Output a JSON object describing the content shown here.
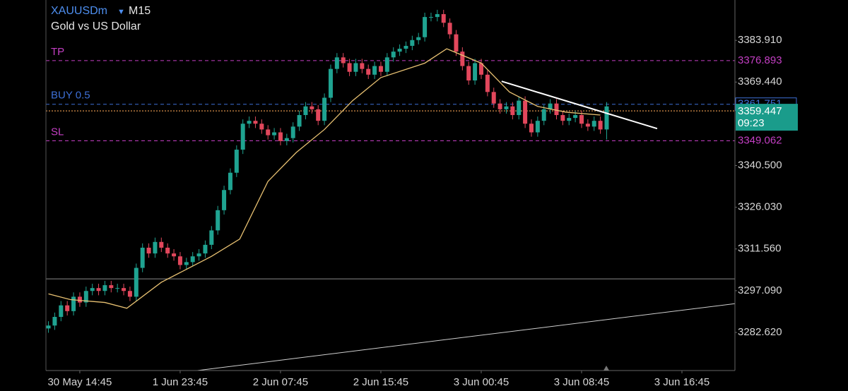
{
  "chart_data": {
    "type": "candlestick",
    "title": "XAUUSDm",
    "timeframe": "M15",
    "subtitle": "Gold vs US Dollar",
    "colors": {
      "up": "#1fa391",
      "down": "#e2475c"
    },
    "xlim": [
      -10.8,
      208.9
    ],
    "ylim": [
      3269.4,
      3397.9
    ],
    "xticks": [
      {
        "value": 0,
        "label": "30 May 14:45"
      },
      {
        "value": 32,
        "label": "1 Jun 23:45"
      },
      {
        "value": 64,
        "label": "2 Jun 07:45"
      },
      {
        "value": 96,
        "label": "2 Jun 15:45"
      },
      {
        "value": 128,
        "label": "3 Jun 00:45"
      },
      {
        "value": 160,
        "label": "3 Jun 08:45"
      },
      {
        "value": 192,
        "label": "3 Jun 16:45"
      }
    ],
    "yticks": [
      {
        "value": 3383.91,
        "label": "3383.910"
      },
      {
        "value": 3369.44,
        "label": "3369.440"
      },
      {
        "value": 3340.5,
        "label": "3340.500"
      },
      {
        "value": 3326.03,
        "label": "3326.030"
      },
      {
        "value": 3311.56,
        "label": "3311.560"
      },
      {
        "value": 3297.09,
        "label": "3297.090"
      },
      {
        "value": 3282.62,
        "label": "3282.620"
      }
    ],
    "x": [
      -10,
      -8,
      -6,
      -4,
      -2,
      0,
      2,
      4,
      6,
      8,
      10,
      12,
      14,
      16,
      18,
      20,
      22,
      24,
      26,
      28,
      30,
      32,
      34,
      36,
      38,
      40,
      42,
      44,
      46,
      48,
      50,
      52,
      54,
      56,
      58,
      60,
      62,
      64,
      66,
      68,
      70,
      72,
      74,
      76,
      78,
      80,
      82,
      84,
      86,
      88,
      90,
      92,
      94,
      96,
      98,
      100,
      102,
      104,
      106,
      108,
      110,
      112,
      114,
      116,
      118,
      120,
      122,
      124,
      126,
      128,
      130,
      132,
      134,
      136,
      138,
      140,
      142,
      144,
      146,
      148,
      150,
      152,
      154,
      156,
      158,
      160,
      162,
      164,
      166,
      168
    ],
    "open": [
      3284,
      3285,
      3288,
      3292,
      3290,
      3295,
      3293,
      3297,
      3298,
      3297,
      3299,
      3298,
      3298,
      3297,
      3295,
      3305,
      3312,
      3310,
      3314,
      3312,
      3310,
      3309,
      3306,
      3307,
      3309,
      3310,
      3313,
      3318,
      3325,
      3332,
      3338,
      3346,
      3355,
      3356,
      3355,
      3353,
      3351,
      3352,
      3349,
      3350,
      3354,
      3358,
      3361,
      3360,
      3356,
      3364,
      3374,
      3378,
      3376,
      3373,
      3376,
      3374,
      3372,
      3375,
      3373,
      3378,
      3380,
      3381,
      3382,
      3384,
      3385,
      3392,
      3392,
      3393,
      3390,
      3386,
      3380,
      3375,
      3370,
      3376,
      3372,
      3366,
      3362,
      3360,
      3361,
      3358,
      3363,
      3355,
      3352,
      3356,
      3360,
      3362,
      3358,
      3356,
      3357,
      3358,
      3355,
      3354,
      3356,
      3353
    ],
    "high": [
      3286.5,
      3289.5,
      3293.5,
      3293.5,
      3296.5,
      3296.5,
      3298.5,
      3299.5,
      3299.5,
      3300.5,
      3300.5,
      3299.5,
      3299.5,
      3298.5,
      3306.5,
      3313.5,
      3313.5,
      3315.5,
      3315.5,
      3313.5,
      3311.5,
      3310.5,
      3308.5,
      3310.5,
      3311.5,
      3314.5,
      3319.5,
      3326.5,
      3333.5,
      3339.5,
      3347.5,
      3356.5,
      3357.5,
      3357.5,
      3356.5,
      3354.5,
      3353.5,
      3353.5,
      3351.5,
      3355.5,
      3359.5,
      3362.5,
      3362.5,
      3361.5,
      3365.5,
      3375.5,
      3379.5,
      3379.5,
      3377.5,
      3377.5,
      3377.5,
      3375.5,
      3376.5,
      3376.5,
      3379.5,
      3381.5,
      3382.5,
      3383.5,
      3385.5,
      3386.5,
      3393.5,
      3393.5,
      3394.5,
      3394.5,
      3391.5,
      3387.5,
      3381.5,
      3376.5,
      3377.5,
      3377.5,
      3373.5,
      3367.5,
      3363.5,
      3362.5,
      3362.5,
      3364.5,
      3364.5,
      3356.5,
      3357.5,
      3361.5,
      3363.5,
      3363.5,
      3359.5,
      3358.5,
      3359.5,
      3359.5,
      3356.5,
      3357.5,
      3357.5,
      3362.5
    ],
    "low": [
      3282.5,
      3283.5,
      3286.5,
      3288.5,
      3288.5,
      3291.5,
      3291.5,
      3295.5,
      3295.5,
      3295.5,
      3296.5,
      3296.5,
      3295.5,
      3293.5,
      3293.5,
      3303.5,
      3308.5,
      3308.5,
      3310.5,
      3308.5,
      3307.5,
      3304.5,
      3304.5,
      3305.5,
      3307.5,
      3308.5,
      3311.5,
      3316.5,
      3323.5,
      3330.5,
      3336.5,
      3344.5,
      3353.5,
      3353.5,
      3351.5,
      3349.5,
      3349.5,
      3347.5,
      3347.5,
      3348.5,
      3352.5,
      3356.5,
      3358.5,
      3354.5,
      3354.5,
      3362.5,
      3372.5,
      3374.5,
      3371.5,
      3371.5,
      3372.5,
      3370.5,
      3370.5,
      3371.5,
      3371.5,
      3376.5,
      3378.5,
      3379.5,
      3380.5,
      3382.5,
      3383.5,
      3390.5,
      3390.5,
      3388.5,
      3384.5,
      3378.5,
      3373.5,
      3368.5,
      3368.5,
      3370.5,
      3364.5,
      3360.5,
      3358.5,
      3358.5,
      3356.5,
      3356.5,
      3353.5,
      3350.5,
      3350.5,
      3354.5,
      3358.5,
      3356.5,
      3354.5,
      3354.5,
      3355.5,
      3353.5,
      3352.5,
      3352.5,
      3351.5,
      3349.5
    ],
    "close": [
      3285,
      3288,
      3292,
      3290,
      3295,
      3293,
      3297,
      3298,
      3297,
      3299,
      3298,
      3298,
      3297,
      3295,
      3305,
      3312,
      3310,
      3314,
      3312,
      3310,
      3309,
      3306,
      3307,
      3309,
      3310,
      3313,
      3318,
      3325,
      3332,
      3338,
      3346,
      3355,
      3356,
      3355,
      3353,
      3351,
      3352,
      3349,
      3350,
      3354,
      3358,
      3361,
      3360,
      3356,
      3364,
      3374,
      3378,
      3376,
      3373,
      3376,
      3374,
      3372,
      3375,
      3373,
      3378,
      3380,
      3381,
      3382,
      3384,
      3385,
      3392,
      3392,
      3393,
      3390,
      3386,
      3380,
      3375,
      3370,
      3376,
      3372,
      3366,
      3362,
      3360,
      3361,
      3358,
      3363,
      3355,
      3352,
      3356,
      3360,
      3362,
      3358,
      3356,
      3357,
      3358,
      3355,
      3354,
      3356,
      3353,
      3361
    ],
    "ma": {
      "color": "#e8c172",
      "x": [
        -10,
        -3,
        8,
        15,
        26,
        42,
        51,
        60,
        69,
        78,
        87,
        96,
        110,
        117,
        128,
        137,
        146,
        155,
        166
      ],
      "values": [
        3296,
        3294,
        3293,
        3291,
        3300,
        3309,
        3315,
        3335,
        3345,
        3353,
        3363,
        3371,
        3376,
        3381,
        3376,
        3366,
        3361,
        3359,
        3358
      ]
    },
    "levels": [
      {
        "label": "TP",
        "value": 3376.893,
        "color": "#c43fc4",
        "style": "dashed"
      },
      {
        "label": "BUY 0.5",
        "value": 3361.751,
        "color": "#3d6fd6",
        "style": "dashed"
      },
      {
        "label": "SL",
        "value": 3349.062,
        "color": "#c43fc4",
        "style": "dashed"
      }
    ],
    "current_price": 3359.447,
    "current_color": "#d9904a",
    "countdown": "09:23",
    "hlines": [
      3301.2
    ],
    "trendlines": [
      {
        "x": [
          134.5,
          184.1
        ],
        "y": [
          3369.7,
          3353.3
        ],
        "color": "#ffffff",
        "width": 2
      },
      {
        "x": [
          28.6,
          208.9
        ],
        "y": [
          3268.2,
          3292.6
        ],
        "color": "#cfcfcf",
        "width": 1
      }
    ]
  }
}
